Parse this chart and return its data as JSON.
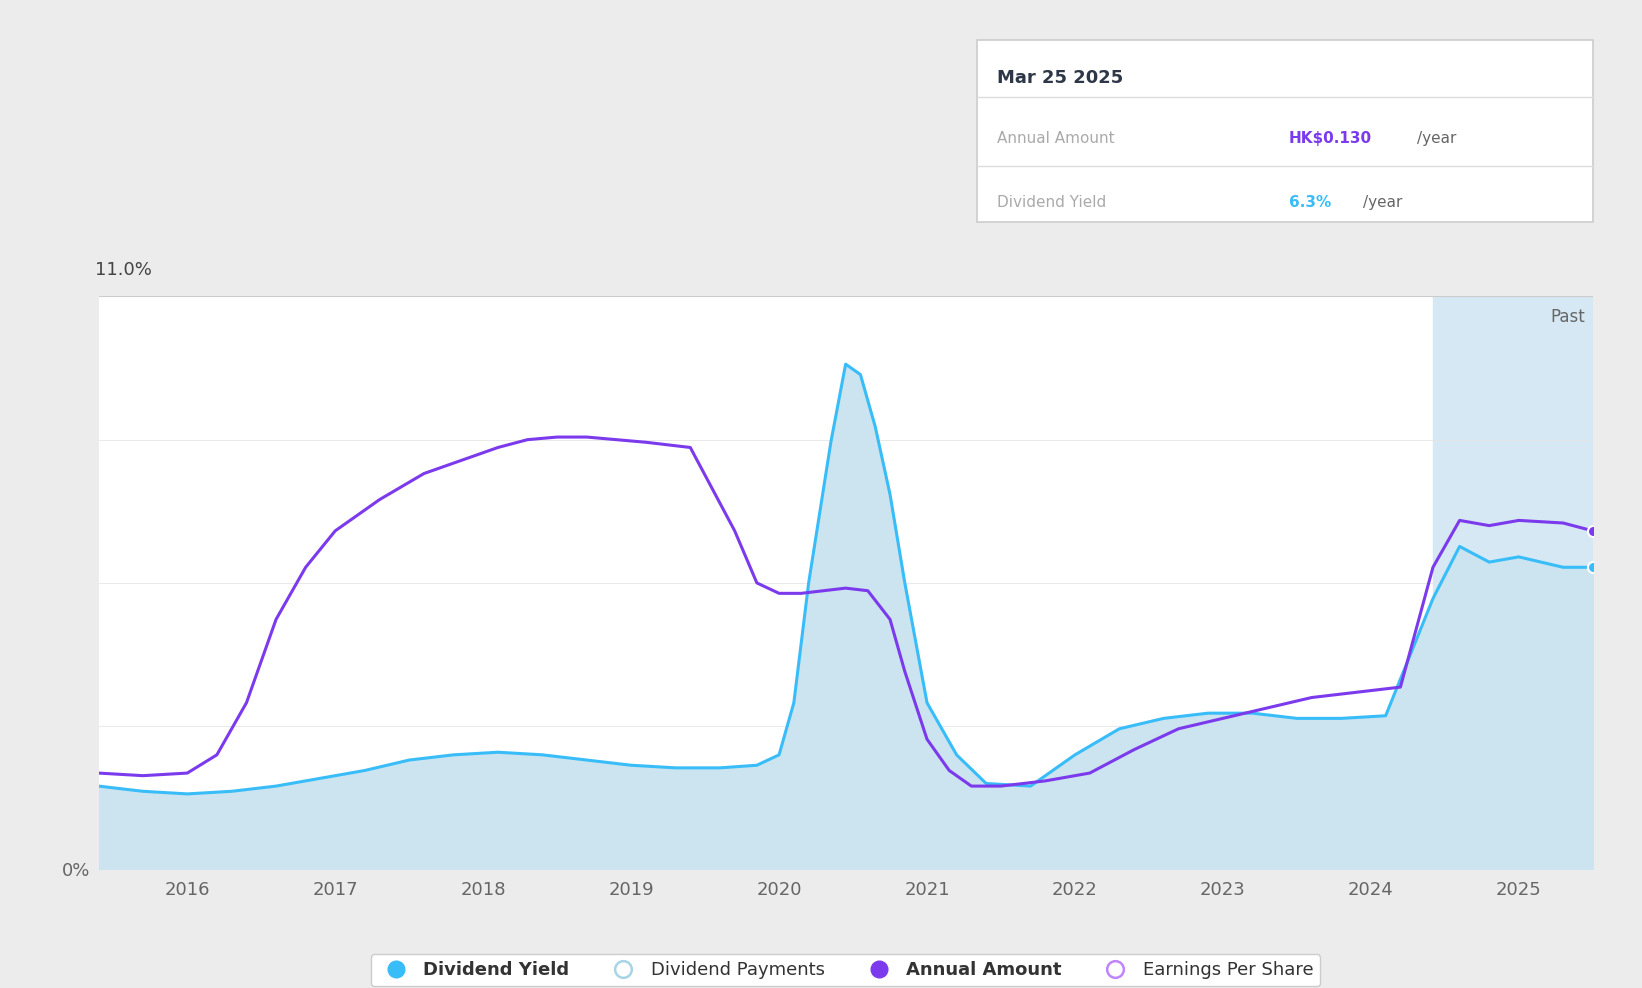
{
  "bg_color": "#ececec",
  "chart_bg_color": "#ffffff",
  "past_bg_color": "#d5e8f3",
  "tooltip": {
    "date": "Mar 25 2025",
    "annual_amount_label": "Annual Amount",
    "annual_amount_value": "HK$0.130",
    "annual_amount_suffix": "/year",
    "annual_amount_color": "#7c3aed",
    "dividend_yield_label": "Dividend Yield",
    "dividend_yield_value": "6.3%",
    "dividend_yield_suffix": "/year",
    "dividend_yield_color": "#38bdf8"
  },
  "y_max": 11.0,
  "y_min": 0.0,
  "x_min": 2015.4,
  "x_max": 2025.5,
  "x_ticks": [
    2016,
    2017,
    2018,
    2019,
    2020,
    2021,
    2022,
    2023,
    2024,
    2025
  ],
  "past_x_start": 2024.42,
  "blue_line_color": "#38bdf8",
  "blue_fill_color": "#cce4f0",
  "purple_line_color": "#7c3aed",
  "blue_x": [
    2015.4,
    2015.7,
    2016.0,
    2016.3,
    2016.6,
    2016.9,
    2017.2,
    2017.5,
    2017.8,
    2018.1,
    2018.4,
    2018.7,
    2019.0,
    2019.3,
    2019.6,
    2019.85,
    2020.0,
    2020.1,
    2020.2,
    2020.35,
    2020.45,
    2020.55,
    2020.65,
    2020.75,
    2020.85,
    2021.0,
    2021.2,
    2021.4,
    2021.7,
    2022.0,
    2022.3,
    2022.6,
    2022.9,
    2023.2,
    2023.5,
    2023.8,
    2024.1,
    2024.42,
    2024.6,
    2024.8,
    2025.0,
    2025.3,
    2025.5
  ],
  "blue_y": [
    1.6,
    1.5,
    1.45,
    1.5,
    1.6,
    1.75,
    1.9,
    2.1,
    2.2,
    2.25,
    2.2,
    2.1,
    2.0,
    1.95,
    1.95,
    2.0,
    2.2,
    3.2,
    5.5,
    8.2,
    9.7,
    9.5,
    8.5,
    7.2,
    5.5,
    3.2,
    2.2,
    1.65,
    1.6,
    2.2,
    2.7,
    2.9,
    3.0,
    3.0,
    2.9,
    2.9,
    2.95,
    5.2,
    6.2,
    5.9,
    6.0,
    5.8,
    5.8
  ],
  "purple_x": [
    2015.4,
    2015.7,
    2016.0,
    2016.2,
    2016.4,
    2016.6,
    2016.8,
    2017.0,
    2017.3,
    2017.6,
    2017.9,
    2018.1,
    2018.3,
    2018.5,
    2018.7,
    2018.9,
    2019.1,
    2019.4,
    2019.7,
    2019.85,
    2020.0,
    2020.15,
    2020.3,
    2020.45,
    2020.6,
    2020.75,
    2020.85,
    2021.0,
    2021.15,
    2021.3,
    2021.5,
    2021.8,
    2022.1,
    2022.4,
    2022.7,
    2023.0,
    2023.3,
    2023.6,
    2023.9,
    2024.2,
    2024.42,
    2024.6,
    2024.8,
    2025.0,
    2025.3,
    2025.5
  ],
  "purple_y": [
    1.85,
    1.8,
    1.85,
    2.2,
    3.2,
    4.8,
    5.8,
    6.5,
    7.1,
    7.6,
    7.9,
    8.1,
    8.25,
    8.3,
    8.3,
    8.25,
    8.2,
    8.1,
    6.5,
    5.5,
    5.3,
    5.3,
    5.35,
    5.4,
    5.35,
    4.8,
    3.8,
    2.5,
    1.9,
    1.6,
    1.6,
    1.7,
    1.85,
    2.3,
    2.7,
    2.9,
    3.1,
    3.3,
    3.4,
    3.5,
    5.8,
    6.7,
    6.6,
    6.7,
    6.65,
    6.5
  ],
  "legend_items": [
    {
      "label": "Dividend Yield",
      "color": "#38bdf8",
      "filled": true,
      "bold": true
    },
    {
      "label": "Dividend Payments",
      "color": "#a8d4e8",
      "filled": false,
      "bold": false
    },
    {
      "label": "Annual Amount",
      "color": "#7c3aed",
      "filled": true,
      "bold": true
    },
    {
      "label": "Earnings Per Share",
      "color": "#c084fc",
      "filled": false,
      "bold": false
    }
  ]
}
